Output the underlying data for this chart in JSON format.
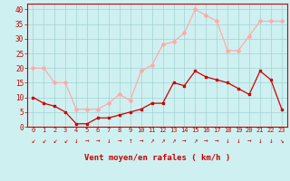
{
  "hours": [
    0,
    1,
    2,
    3,
    4,
    5,
    6,
    7,
    8,
    9,
    10,
    11,
    12,
    13,
    14,
    15,
    16,
    17,
    18,
    19,
    20,
    21,
    22,
    23
  ],
  "wind_avg": [
    10,
    8,
    7,
    5,
    1,
    1,
    3,
    3,
    4,
    5,
    6,
    8,
    8,
    15,
    14,
    19,
    17,
    16,
    15,
    13,
    11,
    19,
    16,
    6
  ],
  "wind_gust": [
    20,
    20,
    15,
    15,
    6,
    6,
    6,
    8,
    11,
    9,
    19,
    21,
    28,
    29,
    32,
    40,
    38,
    36,
    26,
    26,
    31,
    36,
    36,
    36
  ],
  "avg_color": "#cc0000",
  "gust_color": "#ffaaaa",
  "bg_color": "#cff0f0",
  "grid_color": "#99cccc",
  "spine_color": "#cc0000",
  "xlabel": "Vent moyen/en rafales ( km/h )",
  "ylim": [
    0,
    42
  ],
  "yticks": [
    0,
    5,
    10,
    15,
    20,
    25,
    30,
    35,
    40
  ],
  "wind_dirs": [
    "↙",
    "↙",
    "↙",
    "↙",
    "↓",
    "→",
    "→",
    "↓",
    "→",
    "↑",
    "→",
    "↗",
    "↗",
    "↗",
    "→",
    "↗",
    "→",
    "→",
    "↓",
    "↓",
    "→",
    "↓",
    "↓",
    "↘"
  ]
}
